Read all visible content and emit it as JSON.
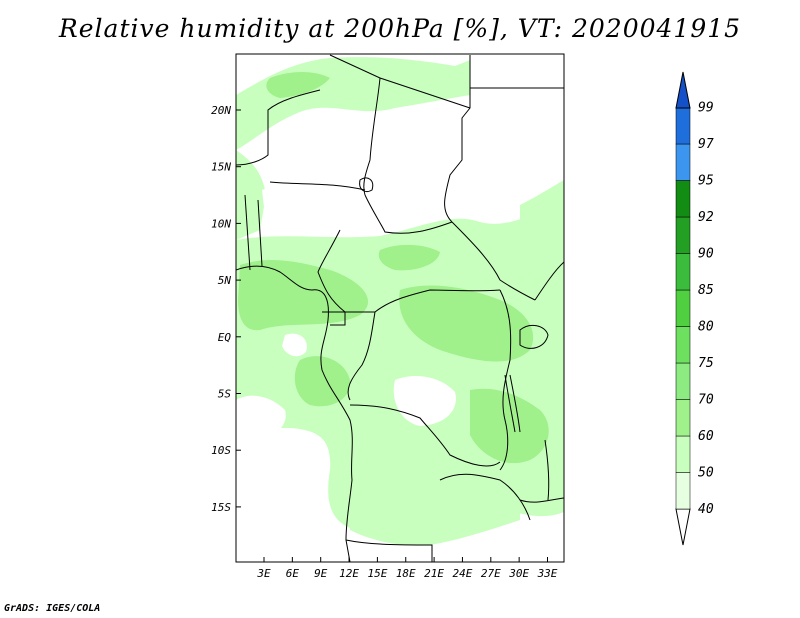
{
  "map": {
    "title": "Relative humidity at 200hPa [%], VT: 2020041915",
    "variable": "Relative humidity",
    "level": "200hPa",
    "units": "%",
    "valid_time": "2020041915",
    "credit": "GrADS: IGES/COLA",
    "lat_ticks": [
      "20N",
      "15N",
      "10N",
      "5N",
      "EQ",
      "5S",
      "10S",
      "15S"
    ],
    "lon_ticks": [
      "3E",
      "6E",
      "9E",
      "12E",
      "15E",
      "18E",
      "21E",
      "24E",
      "27E",
      "30E",
      "33E"
    ]
  },
  "colorbar": {
    "levels": [
      "40",
      "50",
      "60",
      "70",
      "75",
      "80",
      "85",
      "90",
      "92",
      "95",
      "97",
      "99"
    ],
    "colors": [
      "#ffffff",
      "#e6ffe1",
      "#c8ffbe",
      "#a0f08c",
      "#8cec82",
      "#6ee060",
      "#50d040",
      "#3cbc3c",
      "#23a023",
      "#128c12",
      "#3c96f0",
      "#1e6edc",
      "#1450c8"
    ]
  }
}
